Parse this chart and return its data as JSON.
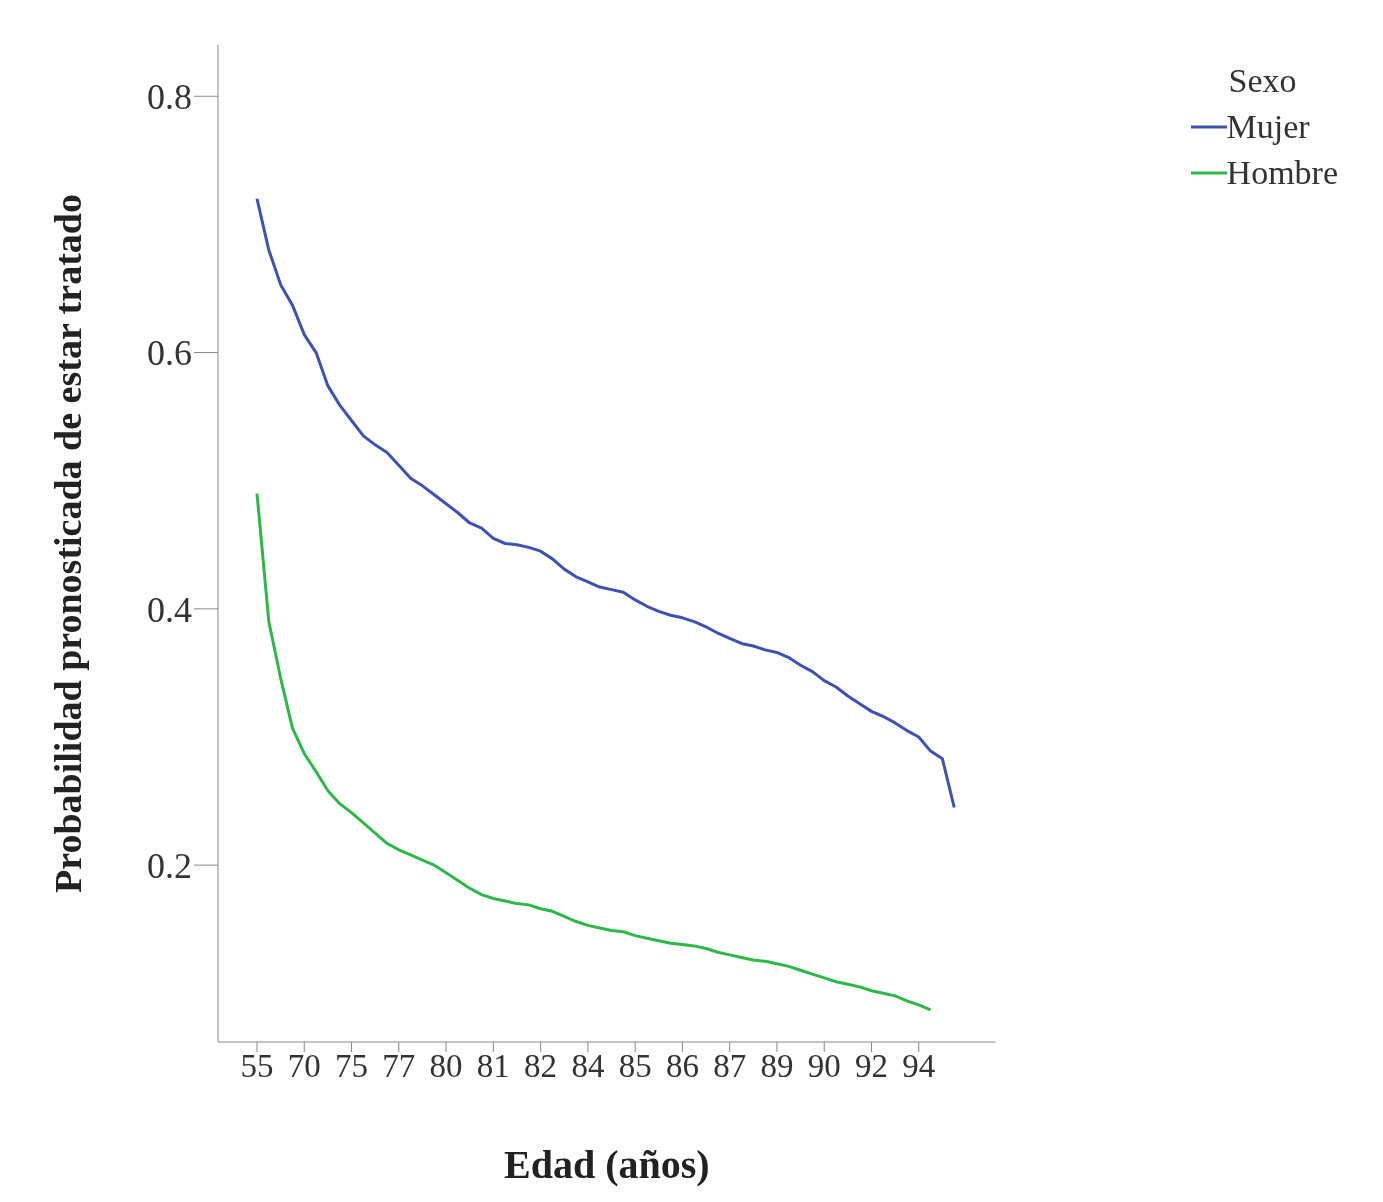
{
  "chart_data": {
    "type": "line",
    "xlabel": "Edad (años)",
    "ylabel": "Probabilidad pronosticada de estar tratado",
    "legend_title": "Sexo",
    "legend": "top right",
    "grid": false,
    "marker": "none",
    "line_style": "solid",
    "categories": [
      "55",
      null,
      null,
      null,
      "70",
      null,
      null,
      null,
      "75",
      null,
      null,
      null,
      "77",
      null,
      null,
      null,
      "80",
      null,
      null,
      null,
      "81",
      null,
      null,
      null,
      "82",
      null,
      null,
      null,
      "84",
      null,
      null,
      null,
      "85",
      null,
      null,
      null,
      "86",
      null,
      null,
      null,
      "87",
      null,
      null,
      null,
      "89",
      null,
      null,
      null,
      "90",
      null,
      null,
      null,
      "92",
      null,
      null,
      null,
      "94",
      null,
      null,
      null
    ],
    "ylim": [
      0.062,
      0.84
    ],
    "yticks": [
      0.2,
      0.4,
      0.6,
      0.8
    ],
    "series": [
      {
        "name": "Mujer",
        "color": "#3f51b5",
        "values": [
          0.72,
          0.68,
          0.653,
          0.637,
          0.614,
          0.6,
          0.574,
          0.559,
          0.547,
          0.535,
          0.528,
          0.522,
          0.512,
          0.502,
          0.496,
          0.489,
          0.482,
          0.475,
          0.467,
          0.463,
          0.455,
          0.451,
          0.45,
          0.448,
          0.445,
          0.439,
          0.431,
          0.425,
          0.421,
          0.417,
          0.415,
          0.413,
          0.407,
          0.402,
          0.398,
          0.395,
          0.393,
          0.39,
          0.386,
          0.381,
          0.377,
          0.373,
          0.371,
          0.368,
          0.366,
          0.362,
          0.356,
          0.351,
          0.344,
          0.339,
          0.332,
          0.326,
          0.32,
          0.316,
          0.311,
          0.305,
          0.3,
          0.289,
          0.283,
          0.245
        ]
      },
      {
        "name": "Hombre",
        "color": "#2db84a",
        "values": [
          0.49,
          0.39,
          0.346,
          0.307,
          0.287,
          0.273,
          0.258,
          0.248,
          0.241,
          0.233,
          0.225,
          0.217,
          0.212,
          0.208,
          0.204,
          0.2,
          0.194,
          0.188,
          0.182,
          0.177,
          0.174,
          0.172,
          0.17,
          0.169,
          0.166,
          0.164,
          0.16,
          0.156,
          0.153,
          0.151,
          0.149,
          0.148,
          0.145,
          0.143,
          0.141,
          0.139,
          0.138,
          0.137,
          0.135,
          0.132,
          0.13,
          0.128,
          0.126,
          0.125,
          0.123,
          0.121,
          0.118,
          0.115,
          0.112,
          0.109,
          0.107,
          0.105,
          0.102,
          0.1,
          0.098,
          0.094,
          0.091,
          0.087,
          null,
          null
        ]
      }
    ]
  }
}
